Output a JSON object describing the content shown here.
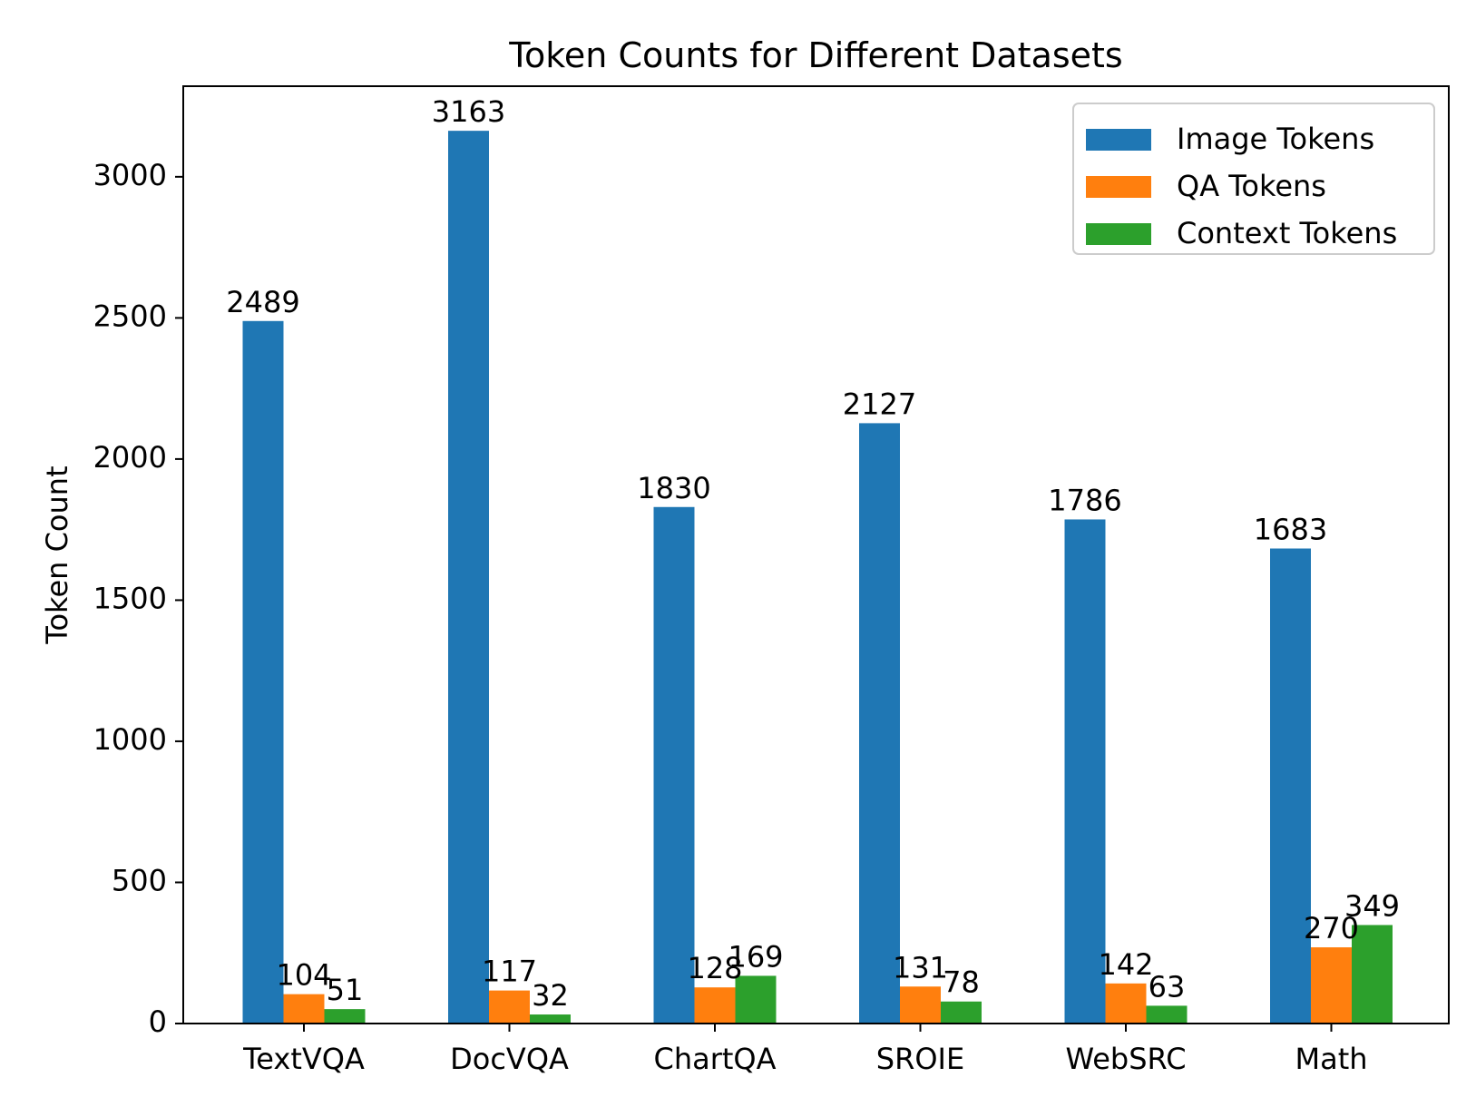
{
  "chart_data": {
    "type": "bar",
    "title": "Token Counts for Different Datasets",
    "xlabel": "",
    "ylabel": "Token Count",
    "categories": [
      "TextVQA",
      "DocVQA",
      "ChartQA",
      "SROIE",
      "WebSRC",
      "Math"
    ],
    "series": [
      {
        "name": "Image Tokens",
        "color": "#1f77b4",
        "values": [
          2489,
          3163,
          1830,
          2127,
          1786,
          1683
        ]
      },
      {
        "name": "QA Tokens",
        "color": "#ff7f0e",
        "values": [
          104,
          117,
          128,
          131,
          142,
          270
        ]
      },
      {
        "name": "Context Tokens",
        "color": "#2ca02c",
        "values": [
          51,
          32,
          169,
          78,
          63,
          349
        ]
      }
    ],
    "yticks": [
      0,
      500,
      1000,
      1500,
      2000,
      2500,
      3000
    ],
    "ylim": [
      0,
      3321
    ],
    "grid": false,
    "legend_position": "top-right"
  }
}
